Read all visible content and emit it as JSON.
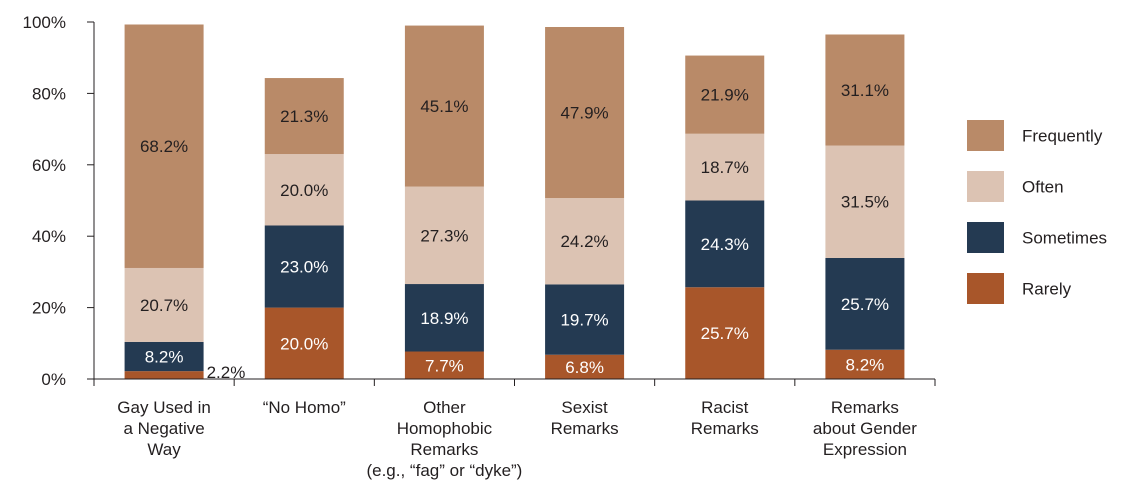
{
  "chart_data": {
    "type": "bar",
    "stacked": true,
    "title": "",
    "xlabel": "",
    "ylabel": "",
    "ylim": [
      0,
      100
    ],
    "y_ticks": [
      "0%",
      "20%",
      "40%",
      "60%",
      "80%",
      "100%"
    ],
    "y_tick_values": [
      0,
      20,
      40,
      60,
      80,
      100
    ],
    "grid": false,
    "legend_position": "right",
    "categories": [
      [
        "Gay Used in",
        "a Negative",
        "Way"
      ],
      [
        "“No Homo”"
      ],
      [
        "Other",
        "Homophobic",
        "Remarks",
        "(e.g., “fag” or “dyke”)"
      ],
      [
        "Sexist",
        "Remarks"
      ],
      [
        "Racist",
        "Remarks"
      ],
      [
        "Remarks",
        "about Gender",
        "Expression"
      ]
    ],
    "series": [
      {
        "name": "Rarely",
        "color": "#a8562a",
        "label_color": "#ffffff",
        "values": [
          2.2,
          20.0,
          7.7,
          6.8,
          25.7,
          8.2
        ],
        "labels": [
          "2.2%",
          "20.0%",
          "7.7%",
          "6.8%",
          "25.7%",
          "8.2%"
        ]
      },
      {
        "name": "Sometimes",
        "color": "#243a52",
        "label_color": "#ffffff",
        "values": [
          8.2,
          23.0,
          18.9,
          19.7,
          24.3,
          25.7
        ],
        "labels": [
          "8.2%",
          "23.0%",
          "18.9%",
          "19.7%",
          "24.3%",
          "25.7%"
        ]
      },
      {
        "name": "Often",
        "color": "#dcc3b3",
        "label_color": "#231f20",
        "values": [
          20.7,
          20.0,
          27.3,
          24.2,
          18.7,
          31.5
        ],
        "labels": [
          "20.7%",
          "20.0%",
          "27.3%",
          "24.2%",
          "18.7%",
          "31.5%"
        ]
      },
      {
        "name": "Frequently",
        "color": "#b98a68",
        "label_color": "#231f20",
        "values": [
          68.2,
          21.3,
          45.1,
          47.9,
          21.9,
          31.1
        ],
        "labels": [
          "68.2%",
          "21.3%",
          "45.1%",
          "47.9%",
          "21.9%",
          "31.1%"
        ]
      }
    ],
    "legend_order": [
      "Frequently",
      "Often",
      "Sometimes",
      "Rarely"
    ]
  }
}
